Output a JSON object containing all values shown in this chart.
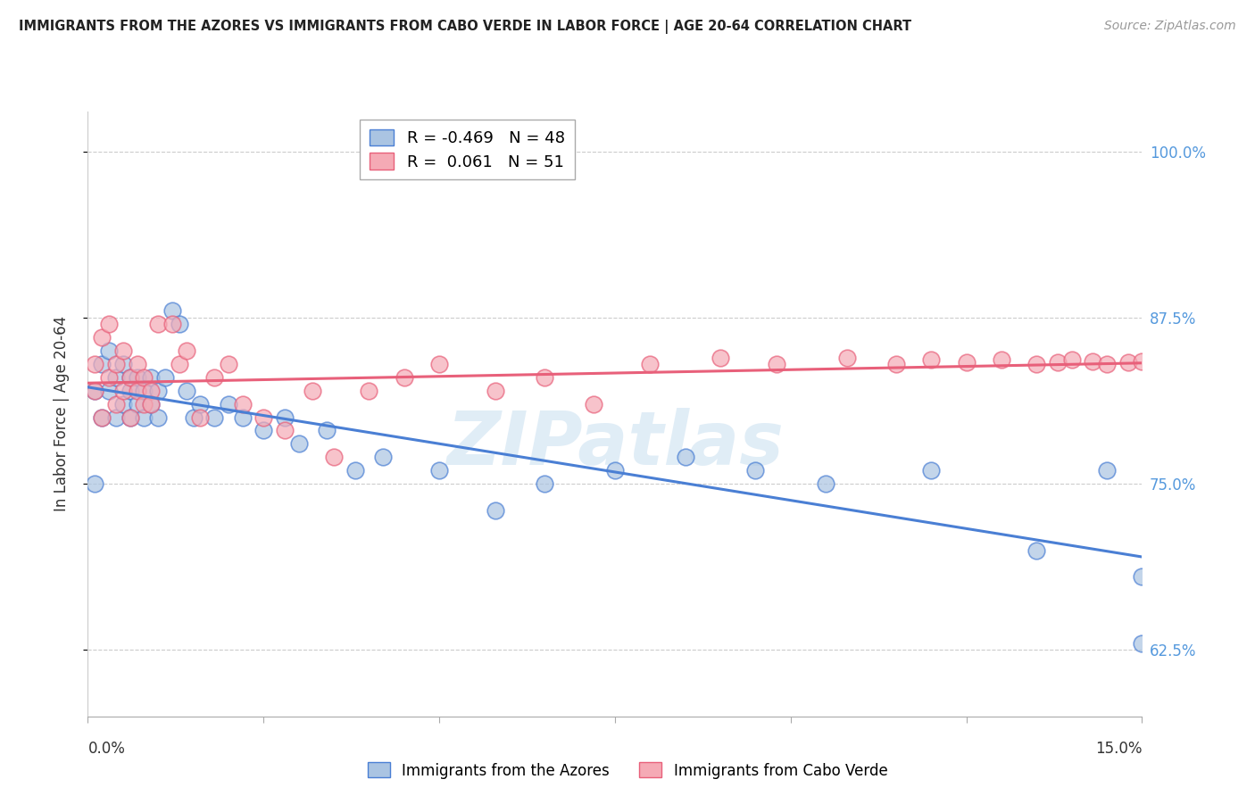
{
  "title": "IMMIGRANTS FROM THE AZORES VS IMMIGRANTS FROM CABO VERDE IN LABOR FORCE | AGE 20-64 CORRELATION CHART",
  "source": "Source: ZipAtlas.com",
  "ylabel": "In Labor Force | Age 20-64",
  "ytick_labels": [
    "62.5%",
    "75.0%",
    "87.5%",
    "100.0%"
  ],
  "ytick_values": [
    0.625,
    0.75,
    0.875,
    1.0
  ],
  "xlim": [
    0.0,
    0.15
  ],
  "ylim": [
    0.575,
    1.03
  ],
  "legend_azores_r": "-0.469",
  "legend_azores_n": "48",
  "legend_cabo_r": "0.061",
  "legend_cabo_n": "51",
  "legend_label_azores": "Immigrants from the Azores",
  "legend_label_cabo": "Immigrants from Cabo Verde",
  "azores_color": "#aac4e2",
  "cabo_color": "#f5aab5",
  "azores_line_color": "#4a7fd4",
  "cabo_line_color": "#e8607a",
  "watermark": "ZIPatlas",
  "azores_x": [
    0.001,
    0.001,
    0.002,
    0.002,
    0.003,
    0.003,
    0.004,
    0.004,
    0.005,
    0.005,
    0.006,
    0.006,
    0.006,
    0.007,
    0.007,
    0.008,
    0.008,
    0.009,
    0.009,
    0.01,
    0.01,
    0.011,
    0.012,
    0.013,
    0.014,
    0.015,
    0.016,
    0.018,
    0.02,
    0.022,
    0.025,
    0.028,
    0.03,
    0.034,
    0.038,
    0.042,
    0.05,
    0.058,
    0.065,
    0.075,
    0.085,
    0.095,
    0.105,
    0.12,
    0.135,
    0.145,
    0.15,
    0.15
  ],
  "azores_y": [
    0.82,
    0.75,
    0.84,
    0.8,
    0.85,
    0.82,
    0.83,
    0.8,
    0.84,
    0.81,
    0.83,
    0.8,
    0.82,
    0.81,
    0.83,
    0.82,
    0.8,
    0.83,
    0.81,
    0.82,
    0.8,
    0.83,
    0.88,
    0.87,
    0.82,
    0.8,
    0.81,
    0.8,
    0.81,
    0.8,
    0.79,
    0.8,
    0.78,
    0.79,
    0.76,
    0.77,
    0.76,
    0.73,
    0.75,
    0.76,
    0.77,
    0.76,
    0.75,
    0.76,
    0.7,
    0.76,
    0.63,
    0.68
  ],
  "cabo_x": [
    0.001,
    0.001,
    0.002,
    0.002,
    0.003,
    0.003,
    0.004,
    0.004,
    0.005,
    0.005,
    0.006,
    0.006,
    0.007,
    0.007,
    0.008,
    0.008,
    0.009,
    0.009,
    0.01,
    0.012,
    0.013,
    0.014,
    0.016,
    0.018,
    0.02,
    0.022,
    0.025,
    0.028,
    0.032,
    0.035,
    0.04,
    0.045,
    0.05,
    0.058,
    0.065,
    0.072,
    0.08,
    0.09,
    0.098,
    0.108,
    0.115,
    0.12,
    0.125,
    0.13,
    0.135,
    0.138,
    0.14,
    0.143,
    0.145,
    0.148,
    0.15
  ],
  "cabo_y": [
    0.84,
    0.82,
    0.86,
    0.8,
    0.87,
    0.83,
    0.84,
    0.81,
    0.85,
    0.82,
    0.83,
    0.8,
    0.82,
    0.84,
    0.83,
    0.81,
    0.82,
    0.81,
    0.87,
    0.87,
    0.84,
    0.85,
    0.8,
    0.83,
    0.84,
    0.81,
    0.8,
    0.79,
    0.82,
    0.77,
    0.82,
    0.83,
    0.84,
    0.82,
    0.83,
    0.81,
    0.84,
    0.845,
    0.84,
    0.845,
    0.84,
    0.843,
    0.841,
    0.843,
    0.84,
    0.841,
    0.843,
    0.842,
    0.84,
    0.841,
    0.842
  ]
}
